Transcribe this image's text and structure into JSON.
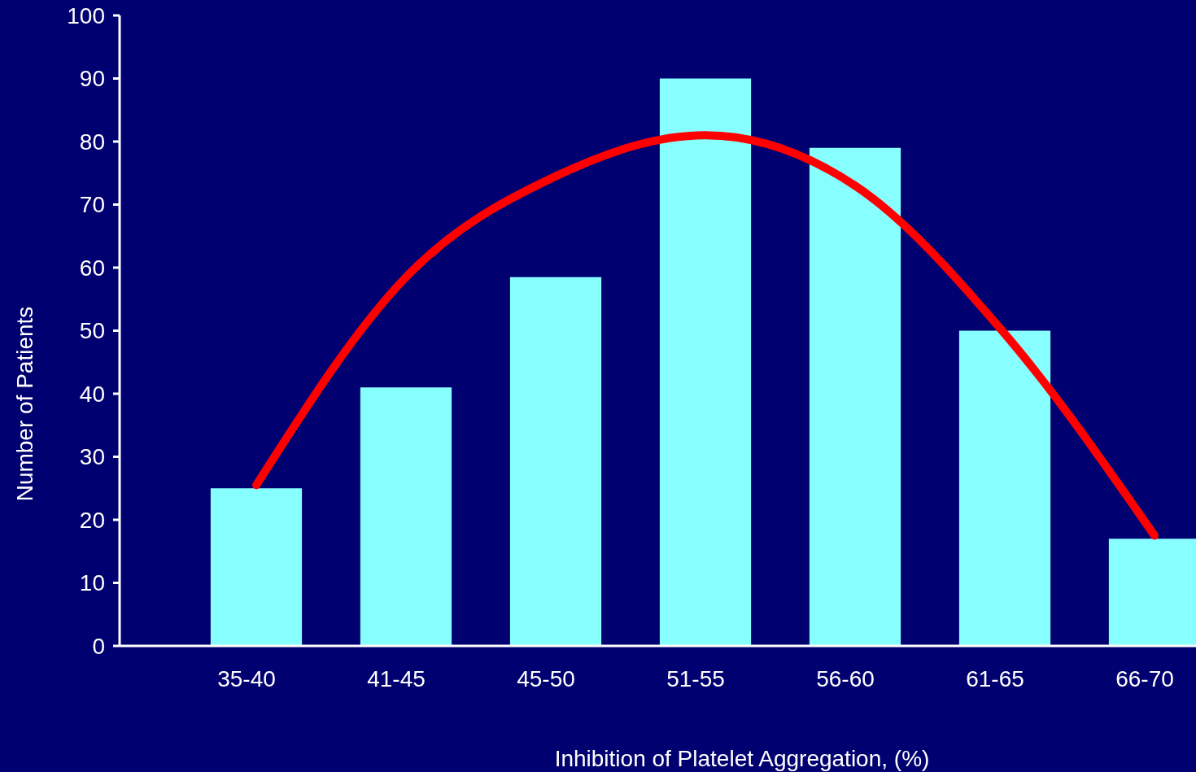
{
  "chart_data": {
    "type": "bar",
    "xlabel": "Inhibition of Platelet Aggregation, (%)",
    "ylabel": "Number of Patients",
    "categories": [
      "35-40",
      "41-45",
      "45-50",
      "51-55",
      "56-60",
      "61-65",
      "66-70"
    ],
    "series": [
      {
        "color": "#88ffff",
        "values": [
          25,
          41,
          58.5,
          90,
          79,
          50,
          17
        ]
      },
      {
        "type": "line",
        "color": "#ff0000",
        "values": [
          25.5,
          58.5,
          74.5,
          81,
          73,
          49.5,
          17.5
        ]
      }
    ],
    "ylim": [
      0,
      100
    ],
    "yticks": [
      0,
      10,
      20,
      30,
      40,
      50,
      60,
      70,
      80,
      90,
      100
    ],
    "grid": false
  }
}
